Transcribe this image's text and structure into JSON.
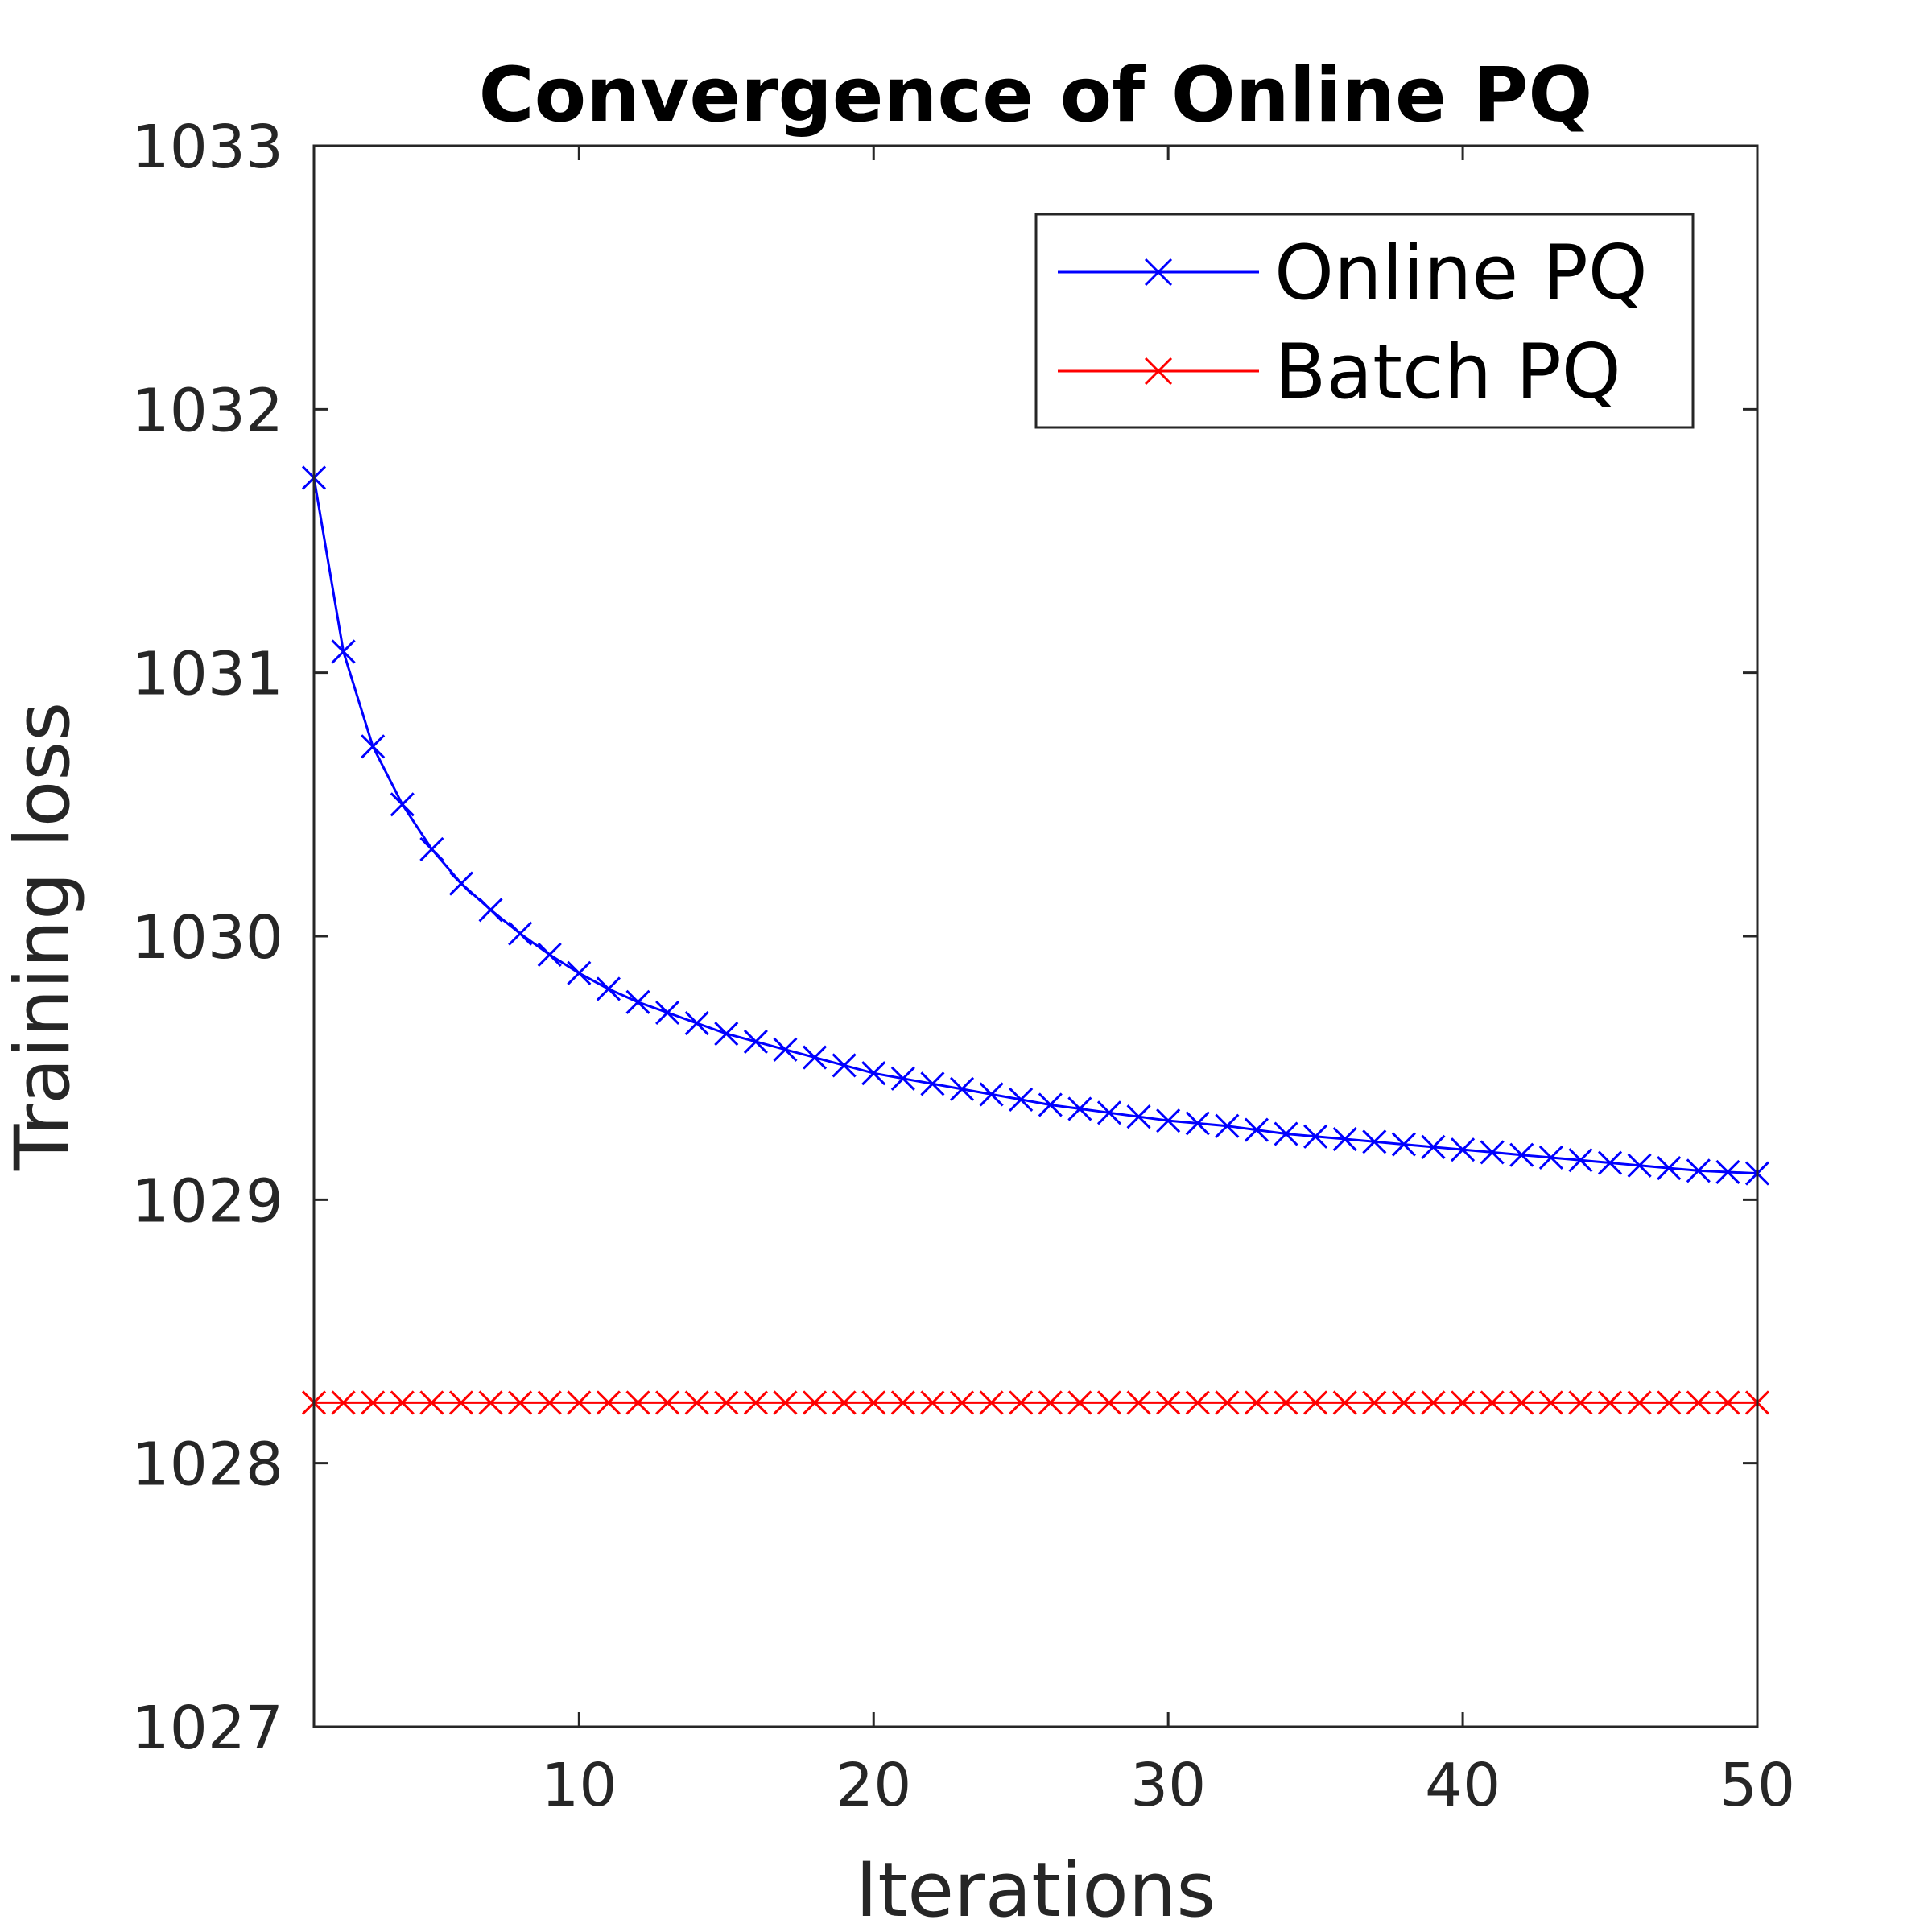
{
  "chart_data": {
    "type": "line",
    "title": "Convergence of Online PQ",
    "xlabel": "Iterations",
    "ylabel": "Training loss",
    "xlim": [
      1,
      50
    ],
    "ylim": [
      1027,
      1033
    ],
    "xticks": [
      10,
      20,
      30,
      40,
      50
    ],
    "yticks": [
      1027,
      1028,
      1029,
      1030,
      1031,
      1032,
      1033
    ],
    "grid": false,
    "legend_position": "top-right",
    "x": [
      1,
      2,
      3,
      4,
      5,
      6,
      7,
      8,
      9,
      10,
      11,
      12,
      13,
      14,
      15,
      16,
      17,
      18,
      19,
      20,
      21,
      22,
      23,
      24,
      25,
      26,
      27,
      28,
      29,
      30,
      31,
      32,
      33,
      34,
      35,
      36,
      37,
      38,
      39,
      40,
      41,
      42,
      43,
      44,
      45,
      46,
      47,
      48,
      49,
      50
    ],
    "series": [
      {
        "name": "Online PQ",
        "color": "#0000ff",
        "marker": "x",
        "values": [
          1031.74,
          1031.08,
          1030.72,
          1030.5,
          1030.33,
          1030.2,
          1030.1,
          1030.01,
          1029.93,
          1029.86,
          1029.8,
          1029.75,
          1029.71,
          1029.67,
          1029.63,
          1029.6,
          1029.57,
          1029.54,
          1029.51,
          1029.48,
          1029.46,
          1029.44,
          1029.42,
          1029.4,
          1029.38,
          1029.36,
          1029.345,
          1029.33,
          1029.315,
          1029.3,
          1029.29,
          1029.28,
          1029.265,
          1029.25,
          1029.24,
          1029.23,
          1029.22,
          1029.21,
          1029.2,
          1029.19,
          1029.18,
          1029.17,
          1029.16,
          1029.15,
          1029.14,
          1029.13,
          1029.12,
          1029.11,
          1029.105,
          1029.1
        ]
      },
      {
        "name": "Batch PQ",
        "color": "#ff0000",
        "marker": "x",
        "values": [
          1028.23,
          1028.23,
          1028.23,
          1028.23,
          1028.23,
          1028.23,
          1028.23,
          1028.23,
          1028.23,
          1028.23,
          1028.23,
          1028.23,
          1028.23,
          1028.23,
          1028.23,
          1028.23,
          1028.23,
          1028.23,
          1028.23,
          1028.23,
          1028.23,
          1028.23,
          1028.23,
          1028.23,
          1028.23,
          1028.23,
          1028.23,
          1028.23,
          1028.23,
          1028.23,
          1028.23,
          1028.23,
          1028.23,
          1028.23,
          1028.23,
          1028.23,
          1028.23,
          1028.23,
          1028.23,
          1028.23,
          1028.23,
          1028.23,
          1028.23,
          1028.23,
          1028.23,
          1028.23,
          1028.23,
          1028.23,
          1028.23,
          1028.23
        ]
      }
    ]
  }
}
